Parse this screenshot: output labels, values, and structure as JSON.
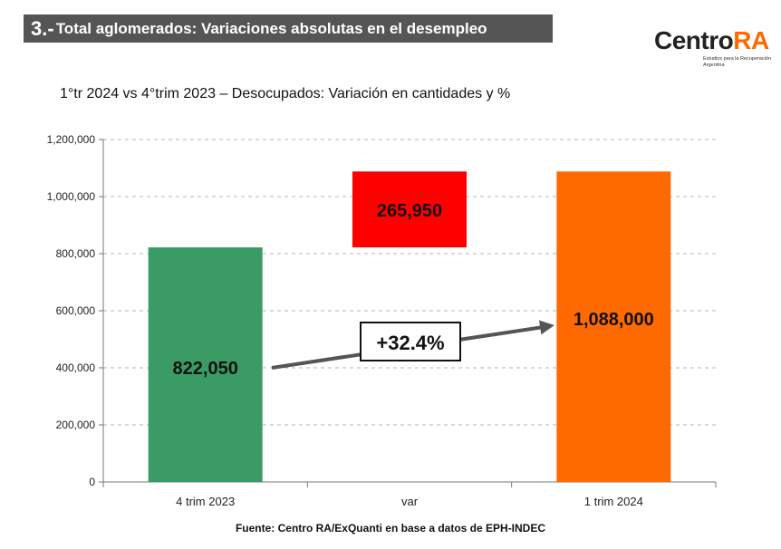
{
  "header": {
    "number": "3.-",
    "title": "Total aglomerados: Variaciones absolutas en el desempleo"
  },
  "logo": {
    "word_a": "Centro",
    "word_b": "RA",
    "tagline": "Estudios para la Recuperación Argentina"
  },
  "subtitle": "1°tr 2024 vs 4°trim 2023 – Desocupados: Variación en cantidades y %",
  "annotation": "+32.4%",
  "source": "Fuente: Centro RA/ExQuanti en base a datos de EPH-INDEC",
  "colors": {
    "bar_2023": "#3a9b64",
    "bar_var": "#ff0000",
    "bar_2024": "#ff6a00",
    "arrow": "#555555",
    "header_bg": "#555555"
  },
  "chart_data": {
    "type": "bar",
    "subtype": "waterfall",
    "categories": [
      "4 trim 2023",
      "var",
      "1 trim 2024"
    ],
    "bars": [
      {
        "category": "4 trim 2023",
        "base": 0,
        "value": 822050,
        "label": "822,050"
      },
      {
        "category": "var",
        "base": 822050,
        "value": 265950,
        "label": "265,950"
      },
      {
        "category": "1 trim 2024",
        "base": 0,
        "value": 1088000,
        "label": "1,088,000"
      }
    ],
    "ylim": [
      0,
      1200000
    ],
    "yticks": [
      0,
      200000,
      400000,
      600000,
      800000,
      1000000,
      1200000
    ],
    "ytick_labels": [
      "0",
      "200,000",
      "400,000",
      "600,000",
      "800,000",
      "1,000,000",
      "1,200,000"
    ],
    "grid": true,
    "legend": "none"
  }
}
